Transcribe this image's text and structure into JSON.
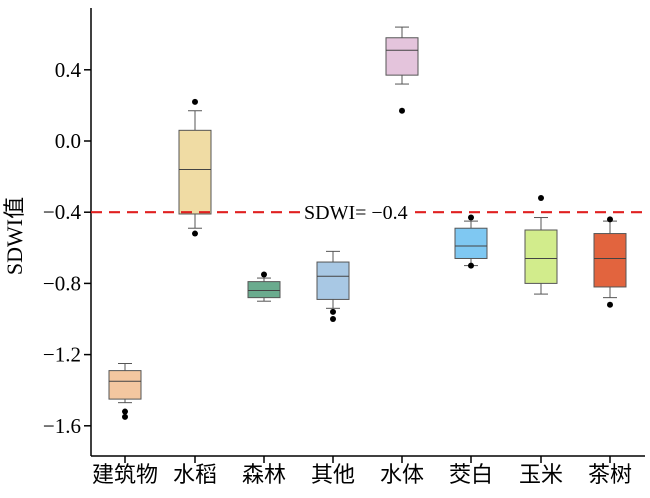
{
  "chart_data": {
    "type": "box",
    "ylabel": "SDWI值",
    "ylim": [
      -1.78,
      0.75
    ],
    "yticks": [
      0.4,
      0.0,
      -0.4,
      -0.8,
      -1.2,
      -1.6
    ],
    "ytick_labels": [
      "0.4",
      "0.0",
      "−0.4",
      "−0.8",
      "−1.2",
      "−1.6"
    ],
    "grid": false,
    "reference_line": {
      "y": -0.4,
      "label": "SDWI= −0.4",
      "color": "#e02020",
      "style": "dashed"
    },
    "categories": [
      "建筑物",
      "水稻",
      "森林",
      "其他",
      "水体",
      "茭白",
      "玉米",
      "茶树"
    ],
    "boxes": [
      {
        "category": "建筑物",
        "whisker_low": -1.47,
        "q1": -1.45,
        "median": -1.35,
        "q3": -1.29,
        "whisker_high": -1.25,
        "outliers": [
          -1.52,
          -1.55
        ],
        "color": "#f4c7a0"
      },
      {
        "category": "水稻",
        "whisker_low": -0.49,
        "q1": -0.41,
        "median": -0.16,
        "q3": 0.06,
        "whisker_high": 0.17,
        "outliers": [
          0.22,
          -0.52
        ],
        "color": "#f0dca4"
      },
      {
        "category": "森林",
        "whisker_low": -0.9,
        "q1": -0.88,
        "median": -0.84,
        "q3": -0.79,
        "whisker_high": -0.77,
        "outliers": [
          -0.75
        ],
        "color": "#6aab8e"
      },
      {
        "category": "其他",
        "whisker_low": -0.94,
        "q1": -0.89,
        "median": -0.76,
        "q3": -0.68,
        "whisker_high": -0.62,
        "outliers": [
          -0.96,
          -1.0
        ],
        "color": "#a8c8e4"
      },
      {
        "category": "水体",
        "whisker_low": 0.32,
        "q1": 0.37,
        "median": 0.51,
        "q3": 0.58,
        "whisker_high": 0.64,
        "outliers": [
          0.17
        ],
        "color": "#e4c4dc"
      },
      {
        "category": "茭白",
        "whisker_low": -0.7,
        "q1": -0.66,
        "median": -0.59,
        "q3": -0.49,
        "whisker_high": -0.45,
        "outliers": [
          -0.43,
          -0.7
        ],
        "color": "#7fc8f2"
      },
      {
        "category": "玉米",
        "whisker_low": -0.86,
        "q1": -0.8,
        "median": -0.66,
        "q3": -0.5,
        "whisker_high": -0.43,
        "outliers": [
          -0.32
        ],
        "color": "#d2ec8c"
      },
      {
        "category": "茶树",
        "whisker_low": -0.88,
        "q1": -0.82,
        "median": -0.66,
        "q3": -0.52,
        "whisker_high": -0.45,
        "outliers": [
          -0.44,
          -0.92
        ],
        "color": "#e2643e"
      }
    ]
  }
}
